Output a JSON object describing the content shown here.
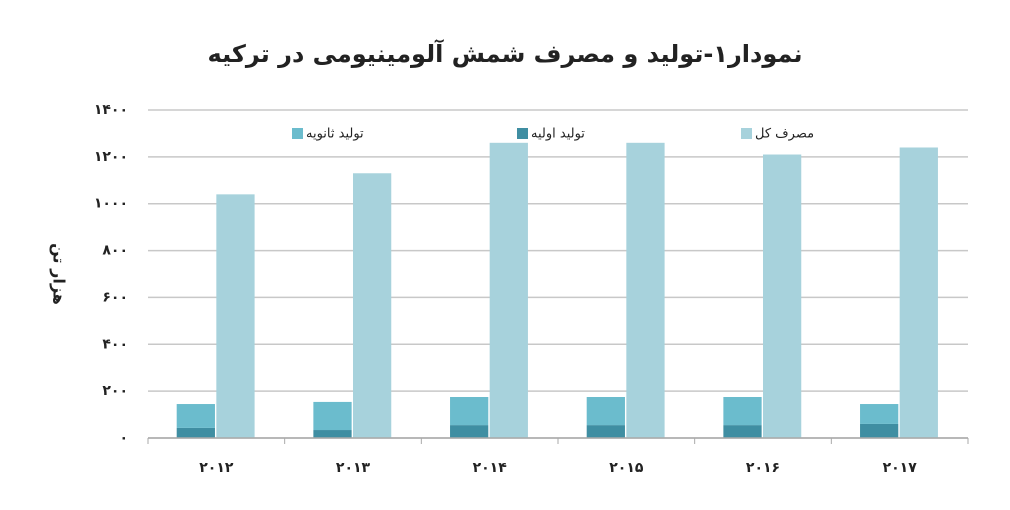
{
  "chart_data": {
    "type": "bar",
    "title": "نمودار۱-تولید و مصرف شمش آلومینیومی در ترکیه",
    "y_label": "هزار تن",
    "categories": [
      "۲۰۱۲",
      "۲۰۱۳",
      "۲۰۱۴",
      "۲۰۱۵",
      "۲۰۱۶",
      "۲۰۱۷"
    ],
    "series": [
      {
        "name": "تولید اولیه",
        "color": "#3f8ea2",
        "values": [
          43,
          34,
          55,
          55,
          55,
          60
        ]
      },
      {
        "name": "تولید ثانویه",
        "color": "#6bbccd",
        "values": [
          102,
          120,
          120,
          120,
          120,
          85
        ]
      },
      {
        "name": "مصرف کل",
        "color": "#a7d2dc",
        "values": [
          1040,
          1130,
          1260,
          1260,
          1210,
          1240
        ]
      }
    ],
    "ylim": [
      0,
      1400
    ],
    "yticks": [
      {
        "value": 0,
        "label": "۰"
      },
      {
        "value": 200,
        "label": "۲۰۰"
      },
      {
        "value": 400,
        "label": "۴۰۰"
      },
      {
        "value": 600,
        "label": "۶۰۰"
      },
      {
        "value": 800,
        "label": "۸۰۰"
      },
      {
        "value": 1000,
        "label": "۱۰۰۰"
      },
      {
        "value": 1200,
        "label": "۱۲۰۰"
      },
      {
        "value": 1400,
        "label": "۱۴۰۰"
      }
    ],
    "grid": true
  }
}
